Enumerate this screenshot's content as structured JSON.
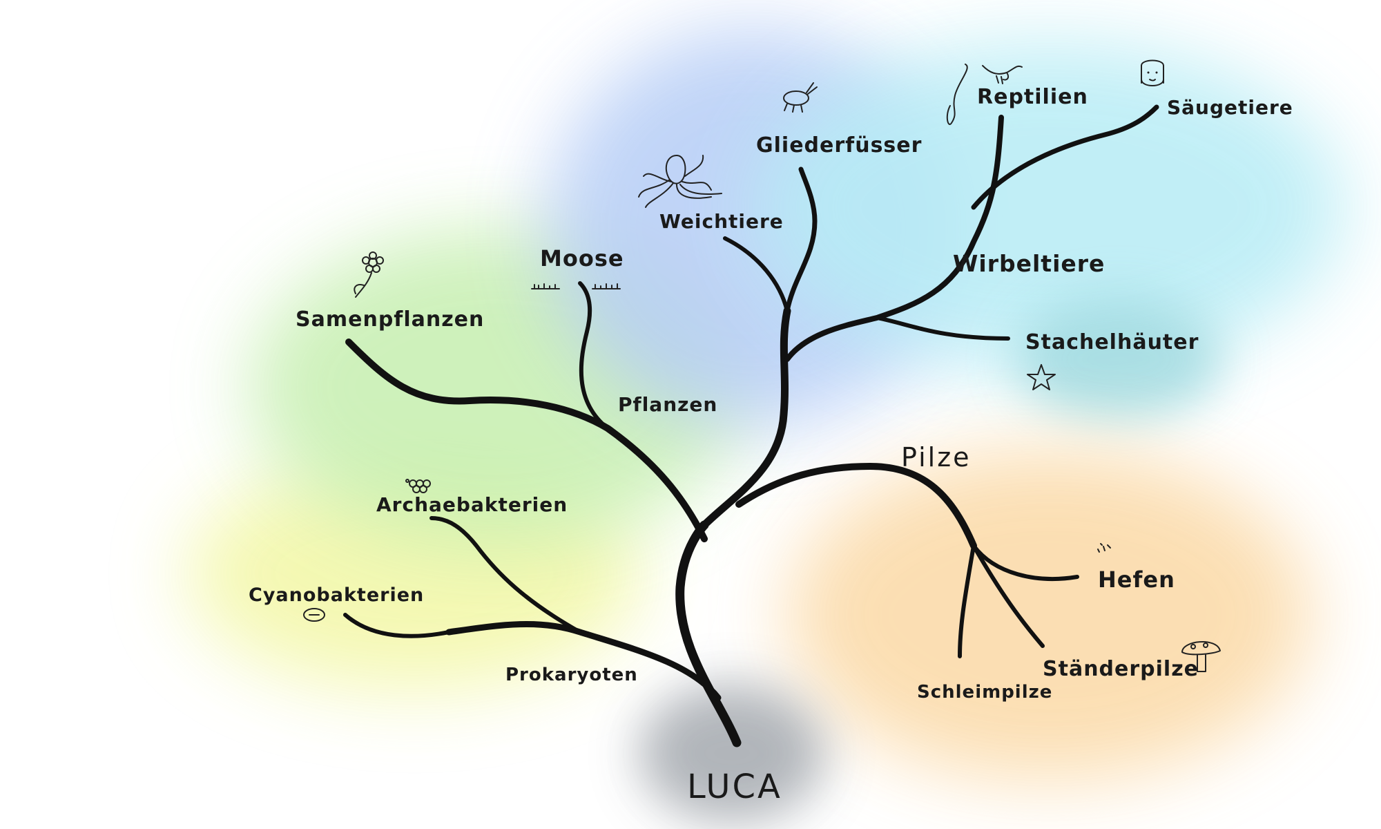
{
  "nodes": {
    "luca": "LUCA",
    "prokaryoten": "Prokaryoten",
    "cyanobakterien": "Cyanobakterien",
    "archaebakterien": "Archaebakterien",
    "pflanzen": "Pflanzen",
    "samenpflanzen": "Samenpflanzen",
    "moose": "Moose",
    "weichtiere": "Weichtiere",
    "gliederfuesser": "Gliederfüsser",
    "wirbeltiere": "Wirbeltiere",
    "reptilien": "Reptilien",
    "saeugetiere": "Säugetiere",
    "stachelhaeuter": "Stachelhäuter",
    "pilze": "Pilze",
    "hefen": "Hefen",
    "staenderpilze": "Ständerpilze",
    "schleimpilze": "Schleimpilze"
  },
  "edges": [
    [
      "luca",
      "prokaryoten"
    ],
    [
      "prokaryoten",
      "cyanobakterien"
    ],
    [
      "prokaryoten",
      "archaebakterien"
    ],
    [
      "luca",
      "pflanzen"
    ],
    [
      "pflanzen",
      "samenpflanzen"
    ],
    [
      "pflanzen",
      "moose"
    ],
    [
      "luca",
      "weichtiere"
    ],
    [
      "luca",
      "gliederfuesser"
    ],
    [
      "luca",
      "wirbeltiere"
    ],
    [
      "wirbeltiere",
      "reptilien"
    ],
    [
      "wirbeltiere",
      "saeugetiere"
    ],
    [
      "wirbeltiere",
      "stachelhaeuter"
    ],
    [
      "luca",
      "pilze"
    ],
    [
      "pilze",
      "hefen"
    ],
    [
      "pilze",
      "staenderpilze"
    ],
    [
      "pilze",
      "schleimpilze"
    ]
  ],
  "icons": {
    "octopus": "octopus-icon",
    "insect": "insect-icon",
    "snake": "snake-icon",
    "bird": "bird-icon",
    "human": "human-face-icon",
    "flower": "flower-icon",
    "moss": "moss-icon",
    "starfish": "starfish-icon",
    "archaea": "archaea-cells-icon",
    "cyanobacteria": "cyanobacteria-cell-icon",
    "yeast": "yeast-icon",
    "mushroom": "mushroom-icon"
  },
  "colors": {
    "prokaryotes_wash": "#f3f7a6",
    "plants_wash": "#c6efb0",
    "animals_blue_wash": "#b6cdf6",
    "animals_cyan_wash": "#b7ecf5",
    "echinoderm_wash": "#9fd9df",
    "fungi_wash": "#fbd9a6",
    "luca_wash": "#a9adb3",
    "branch": "#111111"
  }
}
